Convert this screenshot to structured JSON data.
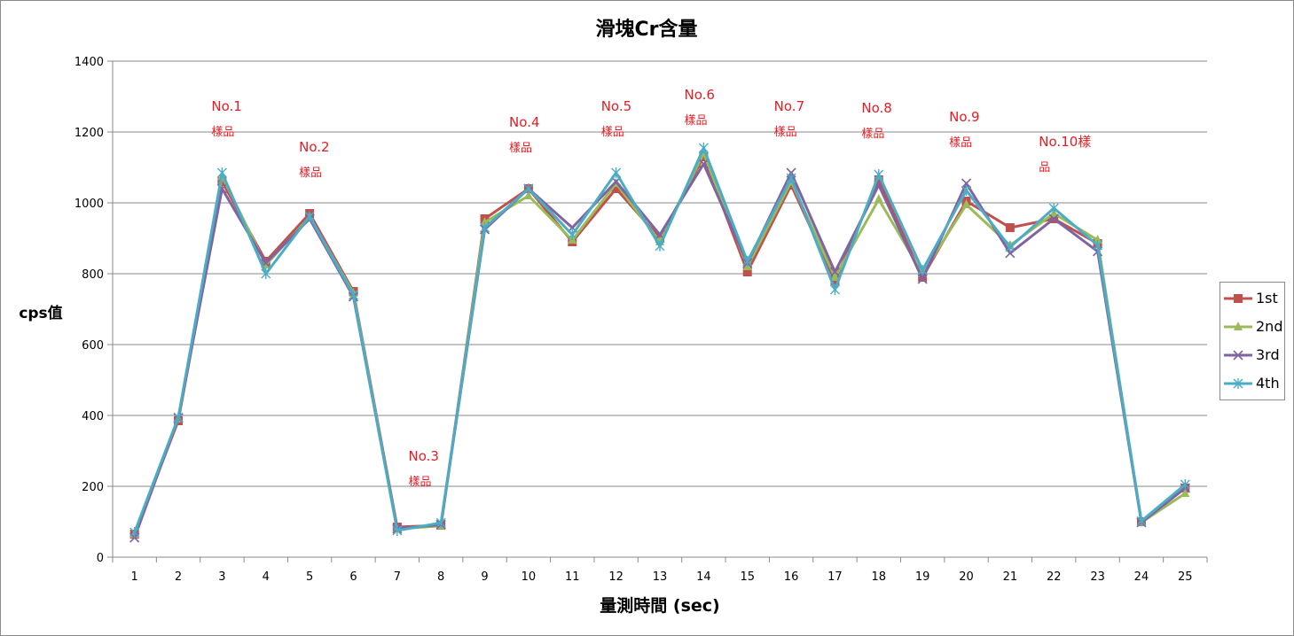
{
  "chart_data": {
    "type": "line",
    "title": "滑塊Cr含量",
    "xlabel": "量測時間 (sec)",
    "ylabel": "cps值",
    "ylim": [
      0,
      1400
    ],
    "yticks": [
      0,
      200,
      400,
      600,
      800,
      1000,
      1200,
      1400
    ],
    "categories": [
      "1",
      "2",
      "3",
      "4",
      "5",
      "6",
      "7",
      "8",
      "9",
      "10",
      "11",
      "12",
      "13",
      "14",
      "15",
      "16",
      "17",
      "18",
      "19",
      "20",
      "21",
      "22",
      "23",
      "24",
      "25"
    ],
    "grid": true,
    "legend_position": "right",
    "series": [
      {
        "name": "1st",
        "color": "#C0504D",
        "marker": "square",
        "values": [
          65,
          385,
          1060,
          835,
          970,
          750,
          85,
          90,
          955,
          1040,
          890,
          1040,
          900,
          1130,
          805,
          1050,
          780,
          1065,
          790,
          1005,
          930,
          955,
          885,
          100,
          195
        ]
      },
      {
        "name": "2nd",
        "color": "#9BBB59",
        "marker": "triangle",
        "values": [
          65,
          390,
          1075,
          825,
          960,
          745,
          80,
          88,
          945,
          1020,
          895,
          1055,
          890,
          1140,
          820,
          1060,
          790,
          1010,
          800,
          995,
          880,
          970,
          895,
          98,
          180
        ]
      },
      {
        "name": "3rd",
        "color": "#8064A2",
        "marker": "x",
        "values": [
          55,
          392,
          1040,
          830,
          955,
          735,
          80,
          92,
          925,
          1040,
          930,
          1060,
          910,
          1110,
          830,
          1085,
          805,
          1050,
          785,
          1055,
          858,
          955,
          863,
          98,
          195
        ]
      },
      {
        "name": "4th",
        "color": "#4BACC6",
        "marker": "star",
        "values": [
          70,
          395,
          1085,
          800,
          962,
          740,
          75,
          97,
          930,
          1040,
          910,
          1085,
          878,
          1155,
          835,
          1070,
          755,
          1080,
          810,
          1035,
          875,
          985,
          880,
          102,
          205
        ]
      }
    ],
    "annotations": [
      {
        "lines": [
          "No.1",
          "樣品"
        ],
        "x_index": 2
      },
      {
        "lines": [
          "No.2",
          "樣品"
        ],
        "x_index": 4
      },
      {
        "lines": [
          "No.3",
          "樣品"
        ],
        "x_index": 6.5
      },
      {
        "lines": [
          "No.4",
          "樣品"
        ],
        "x_index": 8.8
      },
      {
        "lines": [
          "No.5",
          "樣品"
        ],
        "x_index": 10.9
      },
      {
        "lines": [
          "No.6",
          "樣品"
        ],
        "x_index": 12.8
      },
      {
        "lines": [
          "No.7",
          "樣品"
        ],
        "x_index": 14.85
      },
      {
        "lines": [
          "No.8",
          "樣品"
        ],
        "x_index": 16.85
      },
      {
        "lines": [
          "No.9",
          "樣品"
        ],
        "x_index": 18.85
      },
      {
        "lines": [
          "No.10樣",
          "品"
        ],
        "x_index": 20.9
      }
    ],
    "annotation_color": "#E31E24"
  }
}
